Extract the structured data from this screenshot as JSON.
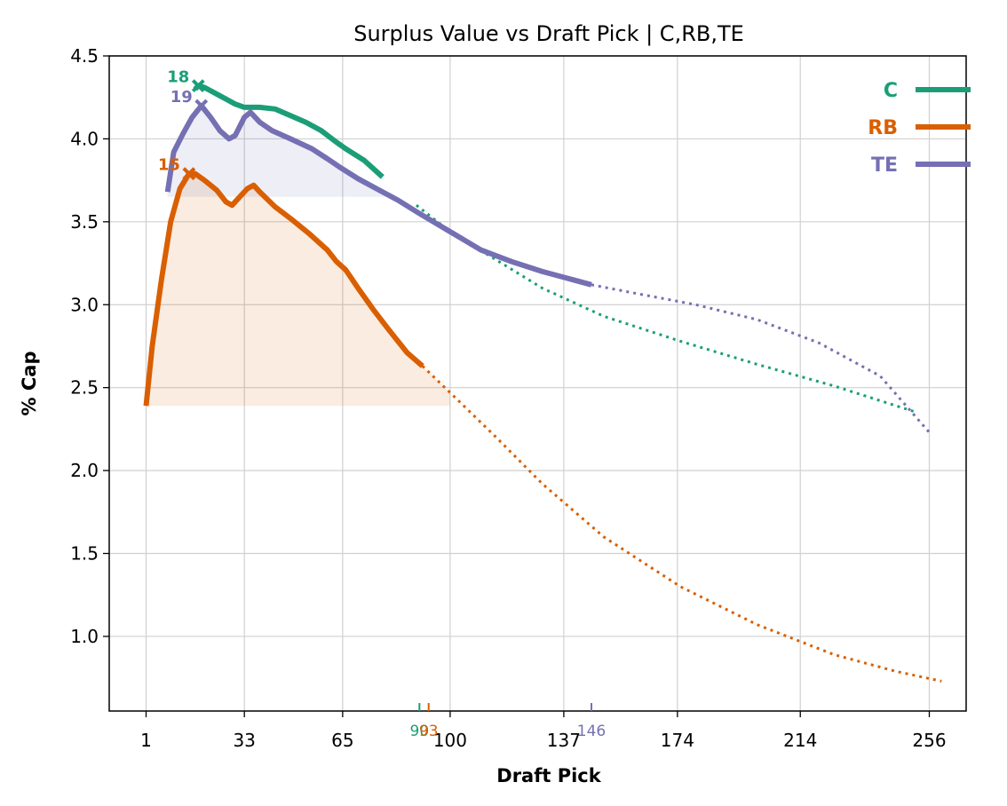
{
  "chart_data": {
    "type": "line",
    "title": "Surplus Value vs Draft Pick | C,RB,TE",
    "xlabel": "Draft Pick",
    "ylabel": "% Cap",
    "xlim": [
      -11,
      268
    ],
    "ylim": [
      0.55,
      4.5
    ],
    "xticks": [
      1,
      33,
      65,
      100,
      137,
      174,
      214,
      256
    ],
    "yticks": [
      1.0,
      1.5,
      2.0,
      2.5,
      3.0,
      3.5,
      4.0,
      4.5
    ],
    "grid": true,
    "legend_position": "top-right",
    "series": [
      {
        "name": "C",
        "color": "#1b9e77",
        "peak": {
          "pick": 18,
          "value": 4.32,
          "label": "18"
        },
        "cutoff": {
          "pick": 90,
          "label": "90"
        },
        "solid": [
          [
            17,
            4.3
          ],
          [
            18,
            4.32
          ],
          [
            20,
            4.31
          ],
          [
            25,
            4.26
          ],
          [
            30,
            4.21
          ],
          [
            33,
            4.19
          ],
          [
            38,
            4.19
          ],
          [
            43,
            4.18
          ],
          [
            48,
            4.14
          ],
          [
            53,
            4.1
          ],
          [
            58,
            4.05
          ],
          [
            63,
            3.98
          ],
          [
            66,
            3.94
          ],
          [
            72,
            3.87
          ],
          [
            78,
            3.77
          ]
        ],
        "fit": [
          [
            89,
            3.6
          ],
          [
            100,
            3.44
          ],
          [
            115,
            3.27
          ],
          [
            130,
            3.1
          ],
          [
            150,
            2.93
          ],
          [
            175,
            2.78
          ],
          [
            200,
            2.64
          ],
          [
            225,
            2.51
          ],
          [
            252,
            2.35
          ]
        ]
      },
      {
        "name": "RB",
        "color": "#d95f02",
        "peak": {
          "pick": 15,
          "value": 3.79,
          "label": "15"
        },
        "cutoff": {
          "pick": 93,
          "label": "93"
        },
        "band": {
          "lower": 2.39,
          "from": 1,
          "to": 100
        },
        "solid": [
          [
            1,
            2.39
          ],
          [
            3,
            2.75
          ],
          [
            6,
            3.15
          ],
          [
            9,
            3.5
          ],
          [
            12,
            3.7
          ],
          [
            15,
            3.79
          ],
          [
            17,
            3.79
          ],
          [
            20,
            3.75
          ],
          [
            24,
            3.69
          ],
          [
            27,
            3.62
          ],
          [
            29,
            3.6
          ],
          [
            32,
            3.66
          ],
          [
            34,
            3.7
          ],
          [
            36,
            3.72
          ],
          [
            38,
            3.68
          ],
          [
            43,
            3.59
          ],
          [
            48,
            3.52
          ],
          [
            54,
            3.43
          ],
          [
            60,
            3.33
          ],
          [
            63,
            3.26
          ],
          [
            66,
            3.21
          ],
          [
            70,
            3.1
          ],
          [
            75,
            2.97
          ],
          [
            80,
            2.85
          ],
          [
            86,
            2.71
          ],
          [
            91,
            2.63
          ]
        ],
        "fit": [
          [
            91,
            2.63
          ],
          [
            100,
            2.47
          ],
          [
            115,
            2.2
          ],
          [
            130,
            1.92
          ],
          [
            150,
            1.6
          ],
          [
            175,
            1.3
          ],
          [
            200,
            1.07
          ],
          [
            225,
            0.89
          ],
          [
            245,
            0.79
          ],
          [
            260,
            0.73
          ]
        ]
      },
      {
        "name": "TE",
        "color": "#7570b3",
        "peak": {
          "pick": 19,
          "value": 4.2,
          "label": "19"
        },
        "cutoff": {
          "pick": 146,
          "label": "146"
        },
        "band": {
          "lower": 3.65,
          "from": 8,
          "to": 80
        },
        "solid": [
          [
            8,
            3.68
          ],
          [
            10,
            3.92
          ],
          [
            13,
            4.03
          ],
          [
            16,
            4.13
          ],
          [
            19,
            4.2
          ],
          [
            22,
            4.13
          ],
          [
            25,
            4.05
          ],
          [
            28,
            4.0
          ],
          [
            30,
            4.02
          ],
          [
            33,
            4.13
          ],
          [
            35,
            4.16
          ],
          [
            38,
            4.1
          ],
          [
            42,
            4.05
          ],
          [
            48,
            4.0
          ],
          [
            55,
            3.94
          ],
          [
            60,
            3.88
          ],
          [
            64,
            3.83
          ],
          [
            70,
            3.76
          ],
          [
            76,
            3.7
          ],
          [
            83,
            3.63
          ],
          [
            90,
            3.55
          ],
          [
            100,
            3.44
          ],
          [
            110,
            3.33
          ],
          [
            120,
            3.26
          ],
          [
            130,
            3.2
          ],
          [
            140,
            3.15
          ],
          [
            146,
            3.12
          ]
        ],
        "fit": [
          [
            146,
            3.12
          ],
          [
            160,
            3.07
          ],
          [
            180,
            3.0
          ],
          [
            200,
            2.91
          ],
          [
            220,
            2.77
          ],
          [
            240,
            2.57
          ],
          [
            256,
            2.23
          ]
        ]
      }
    ]
  }
}
